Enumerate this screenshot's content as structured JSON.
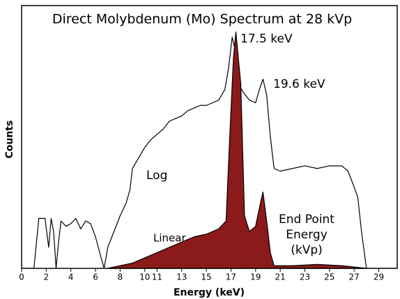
{
  "chart_data": {
    "type": "area",
    "title": "Direct Molybdenum (Mo) Spectrum at 28 kVp",
    "xlabel": "Energy (keV)",
    "ylabel": "Counts",
    "xlim": [
      0,
      30.5
    ],
    "ylim": [
      0,
      100
    ],
    "xticks": [
      0,
      2,
      4,
      6,
      8,
      10,
      11,
      13,
      15,
      17,
      19,
      21,
      23,
      25,
      27,
      29
    ],
    "annotations": [
      "17.5 keV",
      "19.6 keV",
      "Log",
      "Linear"
    ],
    "end_point_label": [
      "End Point",
      "Energy",
      "(kVp)"
    ],
    "series": [
      {
        "name": "Log",
        "color": "#ffffff",
        "line_color": "#000000",
        "x": [
          1,
          1.4,
          1.9,
          2.2,
          2.4,
          2.6,
          2.8,
          3.0,
          3.2,
          3.6,
          4.0,
          4.4,
          4.8,
          5.2,
          5.6,
          6.0,
          6.4,
          6.7,
          7.0,
          7.5,
          8.0,
          8.5,
          8.8,
          9.0,
          9.5,
          10,
          10.5,
          11,
          11.5,
          12,
          12.5,
          13,
          13.5,
          14,
          14.5,
          15,
          15.5,
          16,
          16.5,
          16.8,
          17.1,
          17.3,
          17.6,
          18,
          18.5,
          19,
          19.3,
          19.6,
          19.9,
          20.2,
          20.5,
          21,
          22,
          23,
          24,
          25,
          26,
          26.5,
          27,
          27.3,
          27.6,
          28
        ],
        "values": [
          0,
          19,
          19,
          8,
          19,
          14,
          0,
          10,
          18,
          16,
          17,
          19,
          15,
          18,
          17,
          12,
          5,
          0,
          8,
          14,
          20,
          25,
          30,
          38,
          42,
          46,
          49,
          51,
          53,
          56,
          57,
          58,
          60,
          61,
          62,
          62,
          63,
          64,
          68,
          76,
          88,
          84,
          70,
          67,
          64,
          63,
          68,
          72,
          66,
          50,
          38,
          37,
          38,
          39,
          38,
          39,
          39,
          37,
          31,
          27,
          14,
          0
        ]
      },
      {
        "name": "Linear",
        "color": "#8b1a1a",
        "line_color": "#000000",
        "x": [
          7,
          8,
          9,
          10,
          11,
          12,
          13,
          14,
          15,
          16,
          16.6,
          16.9,
          17.2,
          17.4,
          17.8,
          18.1,
          18.5,
          19,
          19.4,
          19.6,
          19.9,
          20.2,
          20.5,
          22,
          24,
          26,
          27,
          28
        ],
        "values": [
          0,
          1,
          2,
          4,
          6,
          8,
          10,
          12,
          13,
          15,
          18,
          50,
          80,
          90,
          70,
          20,
          14,
          16,
          25,
          29,
          18,
          6,
          1,
          1,
          1.5,
          1,
          0.5,
          0
        ]
      }
    ]
  }
}
